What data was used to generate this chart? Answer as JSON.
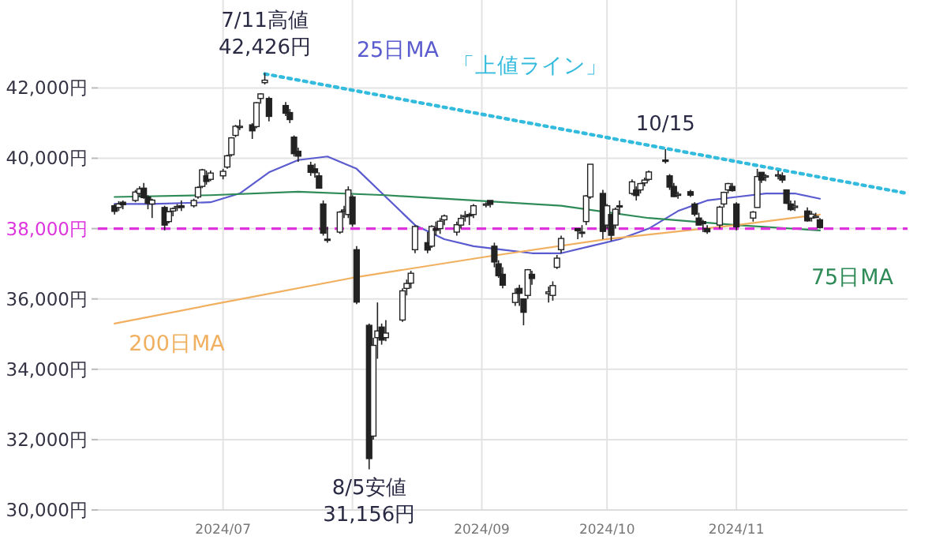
{
  "chart_data": {
    "type": "candlestick",
    "x": [
      "2024-06-05",
      "2024-06-06",
      "2024-06-07",
      "2024-06-10",
      "2024-06-11",
      "2024-06-12",
      "2024-06-13",
      "2024-06-14",
      "2024-06-17",
      "2024-06-18",
      "2024-06-19",
      "2024-06-20",
      "2024-06-21",
      "2024-06-24",
      "2024-06-25",
      "2024-06-26",
      "2024-06-27",
      "2024-06-28",
      "2024-07-01",
      "2024-07-02",
      "2024-07-03",
      "2024-07-04",
      "2024-07-05",
      "2024-07-08",
      "2024-07-09",
      "2024-07-10",
      "2024-07-11",
      "2024-07-12",
      "2024-07-16",
      "2024-07-17",
      "2024-07-18",
      "2024-07-19",
      "2024-07-22",
      "2024-07-23",
      "2024-07-24",
      "2024-07-25",
      "2024-07-26",
      "2024-07-29",
      "2024-07-30",
      "2024-07-31",
      "2024-08-01",
      "2024-08-02",
      "2024-08-05",
      "2024-08-06",
      "2024-08-07",
      "2024-08-08",
      "2024-08-09",
      "2024-08-13",
      "2024-08-14",
      "2024-08-15",
      "2024-08-16",
      "2024-08-19",
      "2024-08-20",
      "2024-08-21",
      "2024-08-22",
      "2024-08-23",
      "2024-08-26",
      "2024-08-27",
      "2024-08-28",
      "2024-08-29",
      "2024-08-30",
      "2024-09-02",
      "2024-09-03",
      "2024-09-04",
      "2024-09-05",
      "2024-09-06",
      "2024-09-09",
      "2024-09-10",
      "2024-09-11",
      "2024-09-12",
      "2024-09-13",
      "2024-09-17",
      "2024-09-18",
      "2024-09-19",
      "2024-09-20",
      "2024-09-24",
      "2024-09-25",
      "2024-09-26",
      "2024-09-27",
      "2024-09-30",
      "2024-10-01",
      "2024-10-02",
      "2024-10-03",
      "2024-10-04",
      "2024-10-07",
      "2024-10-08",
      "2024-10-09",
      "2024-10-10",
      "2024-10-11",
      "2024-10-15",
      "2024-10-16",
      "2024-10-17",
      "2024-10-18",
      "2024-10-21",
      "2024-10-22",
      "2024-10-23",
      "2024-10-24",
      "2024-10-25",
      "2024-10-28",
      "2024-10-29",
      "2024-10-30",
      "2024-10-31",
      "2024-11-01",
      "2024-11-05",
      "2024-11-06",
      "2024-11-07",
      "2024-11-08",
      "2024-11-11",
      "2024-11-12",
      "2024-11-13",
      "2024-11-14",
      "2024-11-15",
      "2024-11-18",
      "2024-11-19",
      "2024-11-20",
      "2024-11-21"
    ],
    "ohlc": [
      [
        38650,
        38700,
        38400,
        38490
      ],
      [
        38600,
        38780,
        38500,
        38700
      ],
      [
        38750,
        38800,
        38550,
        38680
      ],
      [
        38800,
        39100,
        38750,
        39040
      ],
      [
        39000,
        39200,
        38900,
        39130
      ],
      [
        39150,
        39300,
        38850,
        38880
      ],
      [
        38900,
        38950,
        38550,
        38720
      ],
      [
        38700,
        38850,
        38300,
        38810
      ],
      [
        38600,
        38650,
        37950,
        38100
      ],
      [
        38200,
        38500,
        38150,
        38480
      ],
      [
        38500,
        38600,
        38350,
        38570
      ],
      [
        38600,
        38700,
        38500,
        38630
      ],
      [
        38650,
        38800,
        38500,
        38600
      ],
      [
        38650,
        38850,
        38600,
        38800
      ],
      [
        38900,
        39200,
        38850,
        39170
      ],
      [
        39200,
        39700,
        39150,
        39670
      ],
      [
        39500,
        39650,
        39250,
        39340
      ],
      [
        39400,
        39650,
        39350,
        39580
      ],
      [
        39500,
        39700,
        39400,
        39630
      ],
      [
        39750,
        40100,
        39700,
        40070
      ],
      [
        40100,
        40600,
        40050,
        40580
      ],
      [
        40650,
        40950,
        40600,
        40910
      ],
      [
        40900,
        41100,
        40800,
        40910
      ],
      [
        40950,
        41000,
        40550,
        40780
      ],
      [
        40900,
        41600,
        40850,
        41580
      ],
      [
        41700,
        41850,
        41550,
        41830
      ],
      [
        42150,
        42426,
        42100,
        42220
      ],
      [
        41700,
        41750,
        41050,
        41190
      ],
      [
        41500,
        41600,
        41200,
        41280
      ],
      [
        41300,
        41400,
        41000,
        41100
      ],
      [
        40600,
        40650,
        40050,
        40130
      ],
      [
        40200,
        40300,
        39900,
        40060
      ],
      [
        39800,
        39900,
        39500,
        39600
      ],
      [
        39700,
        39850,
        39450,
        39590
      ],
      [
        39500,
        39600,
        39150,
        39150
      ],
      [
        38700,
        38800,
        37800,
        37870
      ],
      [
        37700,
        38050,
        37600,
        37670
      ],
      [
        37900,
        38500,
        37850,
        38470
      ],
      [
        38500,
        38650,
        38300,
        38530
      ],
      [
        38400,
        39200,
        38300,
        39100
      ],
      [
        38900,
        38950,
        38050,
        38130
      ],
      [
        37400,
        37500,
        35850,
        35910
      ],
      [
        35250,
        35300,
        31156,
        31460
      ],
      [
        32100,
        34900,
        32000,
        34680
      ],
      [
        34900,
        35900,
        34300,
        35090
      ],
      [
        35200,
        35300,
        34700,
        34830
      ],
      [
        34900,
        35400,
        34800,
        35030
      ],
      [
        35400,
        36300,
        35350,
        36230
      ],
      [
        36300,
        36550,
        36100,
        36440
      ],
      [
        36450,
        36800,
        36300,
        36730
      ],
      [
        37400,
        38100,
        37300,
        38060
      ],
      [
        37600,
        37900,
        37300,
        37390
      ],
      [
        37500,
        38100,
        37450,
        38060
      ],
      [
        38000,
        38200,
        37800,
        37950
      ],
      [
        38000,
        38300,
        37850,
        38210
      ],
      [
        38250,
        38400,
        38100,
        38360
      ],
      [
        37900,
        38200,
        37800,
        38110
      ],
      [
        38100,
        38400,
        38000,
        38290
      ],
      [
        38350,
        38500,
        38200,
        38370
      ],
      [
        38400,
        38450,
        38100,
        38360
      ],
      [
        38400,
        38700,
        38300,
        38650
      ],
      [
        38700,
        38750,
        38600,
        38700
      ],
      [
        38800,
        38800,
        38600,
        38690
      ],
      [
        37500,
        37600,
        36900,
        37050
      ],
      [
        37000,
        37100,
        36600,
        36660
      ],
      [
        36700,
        36900,
        36300,
        36390
      ],
      [
        35900,
        36300,
        35800,
        36160
      ],
      [
        36300,
        36400,
        35800,
        36160
      ],
      [
        36000,
        36000,
        35250,
        35620
      ],
      [
        36100,
        36850,
        36000,
        36830
      ],
      [
        36700,
        36800,
        36400,
        36580
      ],
      [
        36150,
        36350,
        35900,
        36200
      ],
      [
        36100,
        36500,
        35950,
        36380
      ],
      [
        36900,
        37250,
        36850,
        37160
      ],
      [
        37400,
        37800,
        37300,
        37720
      ],
      [
        38000,
        38000,
        37700,
        37940
      ],
      [
        37900,
        38100,
        37750,
        37870
      ],
      [
        38200,
        38950,
        38100,
        38930
      ],
      [
        38900,
        39830,
        38850,
        39830
      ],
      [
        39000,
        39100,
        37700,
        37920
      ],
      [
        38100,
        38700,
        38000,
        38650
      ],
      [
        38400,
        38400,
        37650,
        37810
      ],
      [
        38100,
        38600,
        38000,
        38550
      ],
      [
        38650,
        38800,
        38400,
        38640
      ],
      [
        39000,
        39400,
        38950,
        39330
      ],
      [
        39100,
        39200,
        38800,
        38940
      ],
      [
        39100,
        39300,
        39000,
        39280
      ],
      [
        39300,
        39450,
        39200,
        39380
      ],
      [
        39400,
        39650,
        39350,
        39610
      ],
      [
        39950,
        40260,
        39850,
        39910
      ],
      [
        39500,
        39550,
        39100,
        39180
      ],
      [
        39200,
        39300,
        38900,
        38910
      ],
      [
        38950,
        39050,
        38850,
        38980
      ],
      [
        39050,
        39100,
        38900,
        38950
      ],
      [
        38700,
        38750,
        38350,
        38410
      ],
      [
        38300,
        38450,
        38100,
        38100
      ],
      [
        38200,
        38250,
        37900,
        38140
      ],
      [
        38000,
        38100,
        37850,
        37910
      ],
      [
        38100,
        38650,
        38000,
        38610
      ],
      [
        38700,
        39050,
        38600,
        39030
      ],
      [
        39100,
        39300,
        39000,
        39280
      ],
      [
        39200,
        39300,
        39050,
        39080
      ],
      [
        38700,
        38750,
        37950,
        38050
      ],
      [
        38300,
        38500,
        38200,
        38470
      ],
      [
        38600,
        39700,
        38600,
        39480
      ],
      [
        39600,
        39600,
        39300,
        39380
      ],
      [
        39500,
        39550,
        39350,
        39500
      ],
      [
        39500,
        39650,
        39400,
        39530
      ],
      [
        39500,
        39600,
        39300,
        39380
      ],
      [
        39100,
        39100,
        38700,
        38720
      ],
      [
        38700,
        38800,
        38500,
        38540
      ],
      [
        38600,
        38800,
        38500,
        38640
      ],
      [
        38500,
        38600,
        38200,
        38220
      ],
      [
        38300,
        38500,
        38200,
        38410
      ],
      [
        38350,
        38450,
        38300,
        38350
      ],
      [
        38250,
        38300,
        38000,
        38030
      ]
    ],
    "series": [
      {
        "name": "25日MA",
        "type": "line",
        "color": "#5b5bd0",
        "x": [
          "2024-06-05",
          "2024-06-14",
          "2024-06-28",
          "2024-07-05",
          "2024-07-12",
          "2024-07-19",
          "2024-07-26",
          "2024-08-02",
          "2024-08-09",
          "2024-08-16",
          "2024-08-23",
          "2024-08-30",
          "2024-09-06",
          "2024-09-13",
          "2024-09-20",
          "2024-09-27",
          "2024-10-04",
          "2024-10-11",
          "2024-10-18",
          "2024-10-25",
          "2024-11-01",
          "2024-11-08",
          "2024-11-15",
          "2024-11-21"
        ],
        "values": [
          38700,
          38700,
          38750,
          39000,
          39600,
          39950,
          40050,
          39700,
          38900,
          38100,
          37700,
          37500,
          37400,
          37300,
          37300,
          37500,
          37700,
          38000,
          38500,
          38800,
          38900,
          39000,
          39000,
          38850
        ]
      },
      {
        "name": "75日MA",
        "type": "line",
        "color": "#2e8b57",
        "x": [
          "2024-06-05",
          "2024-06-28",
          "2024-07-19",
          "2024-08-09",
          "2024-08-30",
          "2024-09-20",
          "2024-10-11",
          "2024-11-01",
          "2024-11-21"
        ],
        "values": [
          38900,
          38950,
          39050,
          38950,
          38800,
          38650,
          38300,
          38100,
          37950
        ]
      },
      {
        "name": "200日MA",
        "type": "line",
        "color": "#f0b060",
        "x": [
          "2024-06-05",
          "2024-07-01",
          "2024-08-01",
          "2024-09-02",
          "2024-10-01",
          "2024-11-01",
          "2024-11-21"
        ],
        "values": [
          35300,
          35900,
          36600,
          37200,
          37700,
          38100,
          38400
        ]
      },
      {
        "name": "「上値ライン」",
        "type": "line",
        "color": "#33bbdd",
        "line_style": "dotted",
        "x": [
          "2024-07-11",
          "2024-12-12"
        ],
        "values": [
          42400,
          39000
        ]
      }
    ],
    "ylim": [
      30000,
      44500
    ],
    "yticks": [
      {
        "value": 30000,
        "label": "30,000円"
      },
      {
        "value": 32000,
        "label": "32,000円"
      },
      {
        "value": 34000,
        "label": "34,000円"
      },
      {
        "value": 36000,
        "label": "36,000円"
      },
      {
        "value": 38000,
        "label": "38,000円"
      },
      {
        "value": 40000,
        "label": "40,000円"
      },
      {
        "value": 42000,
        "label": "42,000円"
      }
    ],
    "xlim": [
      "2024-06-01",
      "2024-12-12"
    ],
    "xticks": [
      {
        "value": "2024-07-01",
        "label": "2024/07"
      },
      {
        "value": "2024-08-01",
        "label": null
      },
      {
        "value": "2024-09-01",
        "label": "2024/09"
      },
      {
        "value": "2024-10-01",
        "label": "2024/10"
      },
      {
        "value": "2024-11-01",
        "label": "2024/11"
      }
    ],
    "ref_lines": [
      {
        "axis": "y",
        "value": 38000,
        "color": "#dd33dd",
        "line_style": "dashed"
      }
    ],
    "annotations": [
      {
        "text": "7/11高値\n42,426円",
        "x": "2024-07-11",
        "y": 42426
      },
      {
        "text": "8/5安値\n31,156円",
        "x": "2024-08-05",
        "y": 31156
      },
      {
        "text": "10/15",
        "x": "2024-10-15",
        "y": 40260
      }
    ],
    "grid": true
  }
}
